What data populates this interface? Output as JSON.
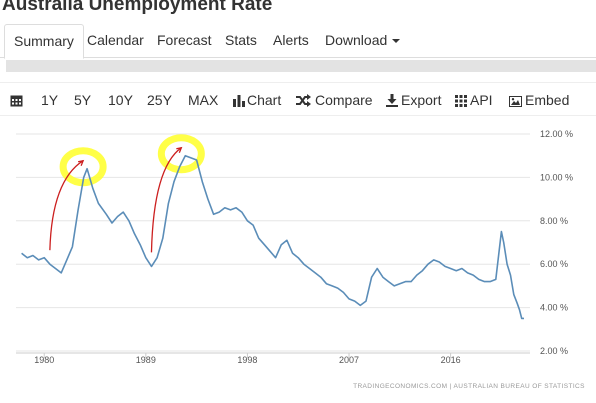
{
  "page": {
    "title": "Australia Unemployment Rate"
  },
  "tabs": [
    {
      "label": "Summary"
    },
    {
      "label": "Calendar"
    },
    {
      "label": "Forecast"
    },
    {
      "label": "Stats"
    },
    {
      "label": "Alerts"
    },
    {
      "label": "Download"
    }
  ],
  "toolbar": {
    "ranges": [
      "1Y",
      "5Y",
      "10Y",
      "25Y",
      "MAX"
    ],
    "chart_label": "Chart",
    "compare_label": "Compare",
    "export_label": "Export",
    "api_label": "API",
    "embed_label": "Embed"
  },
  "colors": {
    "line": "#5b8db8",
    "highlight": "#ffff33",
    "annotation": "#cc1f1f",
    "grid": "#e6e6e6"
  },
  "chart_data": {
    "type": "line",
    "title": "",
    "xlabel": "",
    "ylabel": "",
    "xlim": [
      1977.5,
      2022.5
    ],
    "ylim": [
      2,
      12
    ],
    "x_ticks": [
      1980,
      1989,
      1998,
      2007,
      2016
    ],
    "x_tick_labels": [
      "1980",
      "1989",
      "1998",
      "2007",
      "2016"
    ],
    "y_ticks": [
      2,
      4,
      6,
      8,
      10,
      12
    ],
    "y_tick_labels": [
      "2.00 %",
      "4.00 %",
      "6.00 %",
      "8.00 %",
      "10.00 %",
      "12.00 %"
    ],
    "grid": true,
    "source": "TRADINGECONOMICS.COM  |  AUSTRALIAN BUREAU OF STATISTICS",
    "series": [
      {
        "values": [
          [
            1978.0,
            6.5
          ],
          [
            1978.5,
            6.3
          ],
          [
            1979.0,
            6.4
          ],
          [
            1979.5,
            6.2
          ],
          [
            1980.0,
            6.3
          ],
          [
            1980.5,
            6.0
          ],
          [
            1981.0,
            5.8
          ],
          [
            1981.5,
            5.6
          ],
          [
            1982.0,
            6.2
          ],
          [
            1982.5,
            6.8
          ],
          [
            1983.0,
            8.5
          ],
          [
            1983.5,
            10.0
          ],
          [
            1983.8,
            10.4
          ],
          [
            1984.3,
            9.5
          ],
          [
            1984.8,
            8.8
          ],
          [
            1985.5,
            8.3
          ],
          [
            1986.0,
            7.9
          ],
          [
            1986.5,
            8.2
          ],
          [
            1987.0,
            8.4
          ],
          [
            1987.5,
            8.0
          ],
          [
            1988.0,
            7.4
          ],
          [
            1988.5,
            6.9
          ],
          [
            1989.0,
            6.3
          ],
          [
            1989.5,
            5.9
          ],
          [
            1990.0,
            6.3
          ],
          [
            1990.5,
            7.2
          ],
          [
            1991.0,
            8.8
          ],
          [
            1991.5,
            9.8
          ],
          [
            1992.0,
            10.5
          ],
          [
            1992.5,
            11.0
          ],
          [
            1993.0,
            10.9
          ],
          [
            1993.5,
            10.8
          ],
          [
            1994.0,
            9.8
          ],
          [
            1994.5,
            9.0
          ],
          [
            1995.0,
            8.3
          ],
          [
            1995.5,
            8.4
          ],
          [
            1996.0,
            8.6
          ],
          [
            1996.5,
            8.5
          ],
          [
            1997.0,
            8.6
          ],
          [
            1997.5,
            8.4
          ],
          [
            1998.0,
            8.0
          ],
          [
            1998.5,
            7.8
          ],
          [
            1999.0,
            7.2
          ],
          [
            1999.5,
            6.9
          ],
          [
            2000.0,
            6.6
          ],
          [
            2000.5,
            6.3
          ],
          [
            2001.0,
            6.9
          ],
          [
            2001.5,
            7.1
          ],
          [
            2002.0,
            6.5
          ],
          [
            2002.5,
            6.3
          ],
          [
            2003.0,
            6.0
          ],
          [
            2003.5,
            5.8
          ],
          [
            2004.0,
            5.6
          ],
          [
            2004.5,
            5.4
          ],
          [
            2005.0,
            5.1
          ],
          [
            2005.5,
            5.0
          ],
          [
            2006.0,
            4.9
          ],
          [
            2006.5,
            4.7
          ],
          [
            2007.0,
            4.4
          ],
          [
            2007.5,
            4.3
          ],
          [
            2008.0,
            4.1
          ],
          [
            2008.5,
            4.3
          ],
          [
            2009.0,
            5.4
          ],
          [
            2009.5,
            5.8
          ],
          [
            2010.0,
            5.4
          ],
          [
            2010.5,
            5.2
          ],
          [
            2011.0,
            5.0
          ],
          [
            2011.5,
            5.1
          ],
          [
            2012.0,
            5.2
          ],
          [
            2012.5,
            5.2
          ],
          [
            2013.0,
            5.5
          ],
          [
            2013.5,
            5.7
          ],
          [
            2014.0,
            6.0
          ],
          [
            2014.5,
            6.2
          ],
          [
            2015.0,
            6.1
          ],
          [
            2015.5,
            5.9
          ],
          [
            2016.0,
            5.8
          ],
          [
            2016.5,
            5.7
          ],
          [
            2017.0,
            5.8
          ],
          [
            2017.5,
            5.6
          ],
          [
            2018.0,
            5.5
          ],
          [
            2018.5,
            5.3
          ],
          [
            2019.0,
            5.2
          ],
          [
            2019.5,
            5.2
          ],
          [
            2020.0,
            5.3
          ],
          [
            2020.5,
            7.5
          ],
          [
            2020.7,
            7.0
          ],
          [
            2021.0,
            6.0
          ],
          [
            2021.3,
            5.5
          ],
          [
            2021.6,
            4.6
          ],
          [
            2021.9,
            4.2
          ],
          [
            2022.1,
            3.9
          ],
          [
            2022.3,
            3.5
          ],
          [
            2022.5,
            3.5
          ]
        ]
      }
    ]
  }
}
